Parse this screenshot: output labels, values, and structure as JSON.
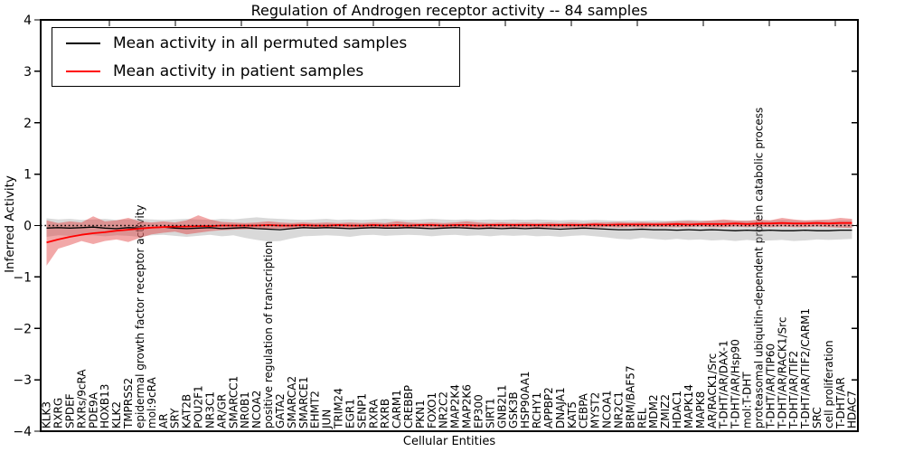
{
  "chart_data": {
    "type": "line",
    "title": "Regulation of Androgen receptor activity -- 84 samples",
    "xlabel": "Cellular Entities",
    "ylabel": "Inferred Activity",
    "ylim": [
      -4,
      4
    ],
    "yticks": [
      -4,
      -3,
      -2,
      -1,
      0,
      1,
      2,
      3,
      4
    ],
    "yticklabels": [
      "−4",
      "−3",
      "−2",
      "−1",
      "0",
      "1",
      "2",
      "3",
      "4"
    ],
    "grid": false,
    "legend_position": "upper left",
    "zero_line": {
      "y": 0,
      "style": "dotted",
      "color": "#000000"
    },
    "categories": [
      "KLK3",
      "RXRG",
      "SPDEF",
      "RXRs/9cRA",
      "PDE9A",
      "HOXB13",
      "KLK2",
      "TMPRSS2",
      "epidermal growth factor receptor activity",
      "mol:9cRA",
      "AR",
      "SRY",
      "KAT2B",
      "POU2F1",
      "NR3C1",
      "AR/GR",
      "SMARCC1",
      "NR0B1",
      "NCOA2",
      "positive regulation of transcription",
      "GATA2",
      "SMARCA2",
      "SMARCE1",
      "EHMT2",
      "JUN",
      "TRIM24",
      "EGR1",
      "SENP1",
      "RXRA",
      "RXRB",
      "CARM1",
      "CREBBP",
      "PKN1",
      "FOXO1",
      "NR2C2",
      "MAP2K4",
      "MAP2K6",
      "EP300",
      "SIRT1",
      "GNB2L1",
      "GSK3B",
      "HSP90AA1",
      "RCHY1",
      "APPBP2",
      "DNAJA1",
      "KAT5",
      "CEBPA",
      "MYST2",
      "NCOA1",
      "NR2C1",
      "BRM/BAF57",
      "REL",
      "MDM2",
      "ZMIZ2",
      "HDAC1",
      "MAPK14",
      "MAPK8",
      "AR/RACK1/Src",
      "T-DHT/AR/DAX-1",
      "T-DHT/AR/Hsp90",
      "mol:T-DHT",
      "proteasomal ubiquitin-dependent protein catabolic process",
      "T-DHT/AR/TIP60",
      "T-DHT/AR/RACK1/Src",
      "T-DHT/AR/TIF2",
      "T-DHT/AR/TIF2/CARM1",
      "SRC",
      "cell proliferation",
      "T-DHT/AR",
      "HDAC7"
    ],
    "series": [
      {
        "name": "Mean activity in all permuted samples",
        "color": "#000000",
        "band_color": "#aaaaaa",
        "band_opacity": 0.45,
        "values": [
          -0.05,
          -0.04,
          -0.05,
          -0.04,
          -0.03,
          -0.05,
          -0.06,
          -0.04,
          -0.05,
          -0.04,
          -0.03,
          -0.05,
          -0.06,
          -0.05,
          -0.04,
          -0.06,
          -0.05,
          -0.04,
          -0.06,
          -0.07,
          -0.08,
          -0.06,
          -0.04,
          -0.05,
          -0.04,
          -0.05,
          -0.06,
          -0.05,
          -0.04,
          -0.05,
          -0.05,
          -0.04,
          -0.05,
          -0.06,
          -0.05,
          -0.04,
          -0.05,
          -0.06,
          -0.05,
          -0.06,
          -0.05,
          -0.06,
          -0.05,
          -0.06,
          -0.07,
          -0.06,
          -0.05,
          -0.06,
          -0.07,
          -0.08,
          -0.08,
          -0.07,
          -0.08,
          -0.08,
          -0.09,
          -0.08,
          -0.09,
          -0.08,
          -0.09,
          -0.1,
          -0.09,
          -0.1,
          -0.09,
          -0.1,
          -0.1,
          -0.09,
          -0.1,
          -0.1,
          -0.09,
          -0.09
        ],
        "band_upper": [
          0.14,
          0.12,
          0.13,
          0.11,
          0.12,
          0.13,
          0.11,
          0.12,
          0.13,
          0.12,
          0.11,
          0.12,
          0.13,
          0.12,
          0.11,
          0.13,
          0.12,
          0.14,
          0.16,
          0.14,
          0.13,
          0.12,
          0.11,
          0.12,
          0.13,
          0.11,
          0.12,
          0.11,
          0.12,
          0.13,
          0.12,
          0.11,
          0.12,
          0.13,
          0.12,
          0.11,
          0.12,
          0.11,
          0.12,
          0.11,
          0.12,
          0.11,
          0.12,
          0.11,
          0.1,
          0.11,
          0.1,
          0.11,
          0.1,
          0.09,
          0.1,
          0.09,
          0.1,
          0.09,
          0.1,
          0.11,
          0.1,
          0.09,
          0.1,
          0.09,
          0.1,
          0.09,
          0.1,
          0.11,
          0.1,
          0.09,
          0.1,
          0.09,
          0.1,
          0.1
        ],
        "band_lower": [
          -0.22,
          -0.19,
          -0.2,
          -0.18,
          -0.19,
          -0.21,
          -0.19,
          -0.2,
          -0.22,
          -0.19,
          -0.18,
          -0.2,
          -0.22,
          -0.2,
          -0.18,
          -0.21,
          -0.19,
          -0.24,
          -0.28,
          -0.31,
          -0.3,
          -0.25,
          -0.21,
          -0.2,
          -0.19,
          -0.2,
          -0.22,
          -0.19,
          -0.18,
          -0.2,
          -0.19,
          -0.18,
          -0.19,
          -0.21,
          -0.19,
          -0.18,
          -0.2,
          -0.19,
          -0.21,
          -0.19,
          -0.2,
          -0.19,
          -0.21,
          -0.2,
          -0.22,
          -0.2,
          -0.19,
          -0.21,
          -0.23,
          -0.26,
          -0.27,
          -0.24,
          -0.26,
          -0.28,
          -0.26,
          -0.28,
          -0.27,
          -0.29,
          -0.28,
          -0.3,
          -0.28,
          -0.3,
          -0.29,
          -0.28,
          -0.3,
          -0.29,
          -0.27,
          -0.28,
          -0.27,
          -0.26
        ]
      },
      {
        "name": "Mean activity in patient samples",
        "color": "#ff0000",
        "band_color": "#e03030",
        "band_opacity": 0.42,
        "values": [
          -0.33,
          -0.27,
          -0.22,
          -0.18,
          -0.15,
          -0.13,
          -0.1,
          -0.08,
          -0.06,
          -0.04,
          -0.03,
          -0.02,
          -0.02,
          -0.01,
          -0.01,
          0.0,
          0.0,
          0.0,
          0.0,
          0.01,
          0.0,
          0.0,
          0.01,
          0.0,
          0.0,
          0.01,
          0.0,
          0.0,
          0.01,
          0.0,
          0.01,
          0.0,
          0.01,
          0.01,
          0.0,
          0.01,
          0.01,
          0.0,
          0.01,
          0.01,
          0.01,
          0.01,
          0.01,
          0.01,
          0.01,
          0.01,
          0.01,
          0.02,
          0.01,
          0.02,
          0.02,
          0.02,
          0.02,
          0.02,
          0.03,
          0.02,
          0.03,
          0.03,
          0.03,
          0.04,
          0.03,
          0.04,
          0.04,
          0.05,
          0.04,
          0.04,
          0.05,
          0.04,
          0.05,
          0.05
        ],
        "band_upper": [
          0.1,
          0.05,
          0.08,
          0.06,
          0.18,
          0.08,
          0.1,
          0.15,
          0.08,
          0.06,
          0.08,
          0.06,
          0.1,
          0.2,
          0.12,
          0.07,
          0.06,
          0.05,
          0.06,
          0.08,
          0.06,
          0.05,
          0.06,
          0.05,
          0.06,
          0.05,
          0.06,
          0.05,
          0.06,
          0.05,
          0.08,
          0.06,
          0.05,
          0.06,
          0.05,
          0.06,
          0.08,
          0.06,
          0.05,
          0.06,
          0.05,
          0.06,
          0.05,
          0.06,
          0.05,
          0.06,
          0.05,
          0.06,
          0.06,
          0.07,
          0.06,
          0.07,
          0.06,
          0.07,
          0.08,
          0.09,
          0.08,
          0.1,
          0.12,
          0.1,
          0.09,
          0.12,
          0.1,
          0.15,
          0.12,
          0.1,
          0.11,
          0.12,
          0.15,
          0.13
        ],
        "band_lower": [
          -0.78,
          -0.45,
          -0.38,
          -0.3,
          -0.36,
          -0.3,
          -0.27,
          -0.32,
          -0.24,
          -0.17,
          -0.14,
          -0.12,
          -0.17,
          -0.14,
          -0.11,
          -0.09,
          -0.08,
          -0.07,
          -0.07,
          -0.06,
          -0.06,
          -0.05,
          -0.05,
          -0.05,
          -0.05,
          -0.04,
          -0.05,
          -0.04,
          -0.04,
          -0.05,
          -0.04,
          -0.05,
          -0.04,
          -0.04,
          -0.05,
          -0.04,
          -0.04,
          -0.05,
          -0.04,
          -0.04,
          -0.04,
          -0.04,
          -0.04,
          -0.04,
          -0.04,
          -0.04,
          -0.03,
          -0.04,
          -0.03,
          -0.04,
          -0.03,
          -0.04,
          -0.03,
          -0.03,
          -0.03,
          -0.03,
          -0.02,
          -0.03,
          -0.03,
          -0.02,
          -0.03,
          -0.02,
          -0.03,
          -0.02,
          -0.03,
          -0.03,
          -0.02,
          -0.03,
          -0.04,
          -0.05
        ]
      }
    ]
  }
}
